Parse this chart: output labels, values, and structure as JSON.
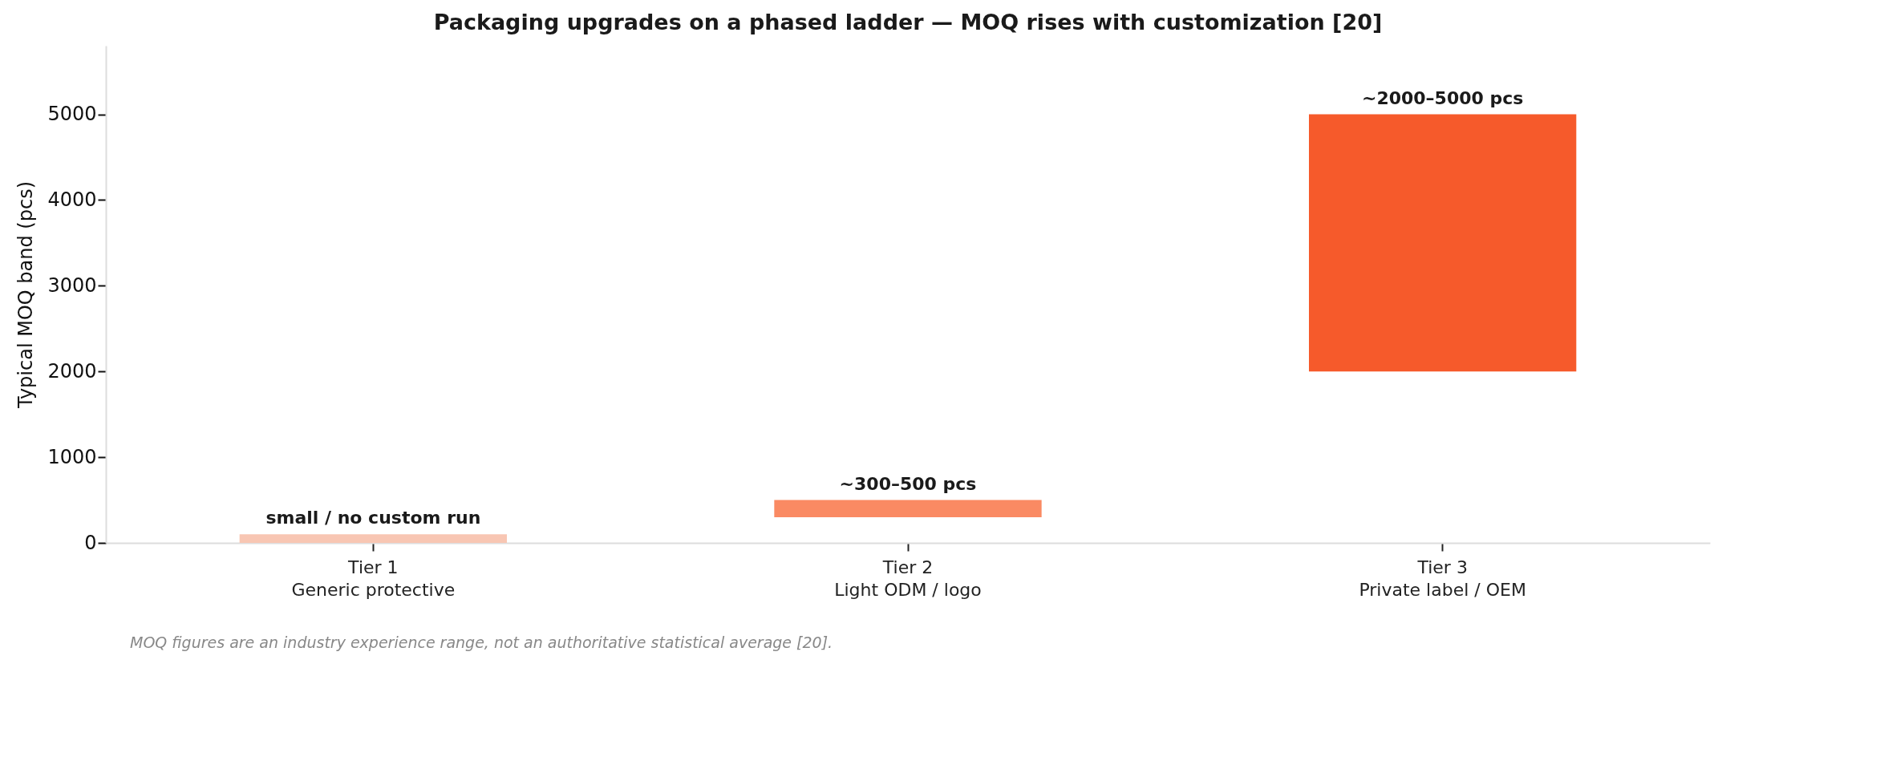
{
  "chart_data": {
    "type": "bar",
    "title": "Packaging upgrades on a phased ladder — MOQ rises with customization [20]",
    "ylabel": "Typical MOQ band (pcs)",
    "categories": [
      "Tier 1\nGeneric protective",
      "Tier 2\nLight ODM / logo",
      "Tier 3\nPrivate label / OEM"
    ],
    "base": [
      0,
      300,
      2000
    ],
    "values": [
      100,
      200,
      3000
    ],
    "colors": [
      "#f8c6b3",
      "#fa8a63",
      "#f65a2b"
    ],
    "value_labels": [
      "small / no custom run",
      "~300–500 pcs",
      "~2000–5000 pcs"
    ],
    "ylim": [
      0,
      5800
    ],
    "yticks": [
      0,
      1000,
      2000,
      3000,
      4000,
      5000
    ],
    "grid": false,
    "annotations": [
      "MOQ figures are an industry experience range, not an authoritative statistical average [20]."
    ]
  }
}
